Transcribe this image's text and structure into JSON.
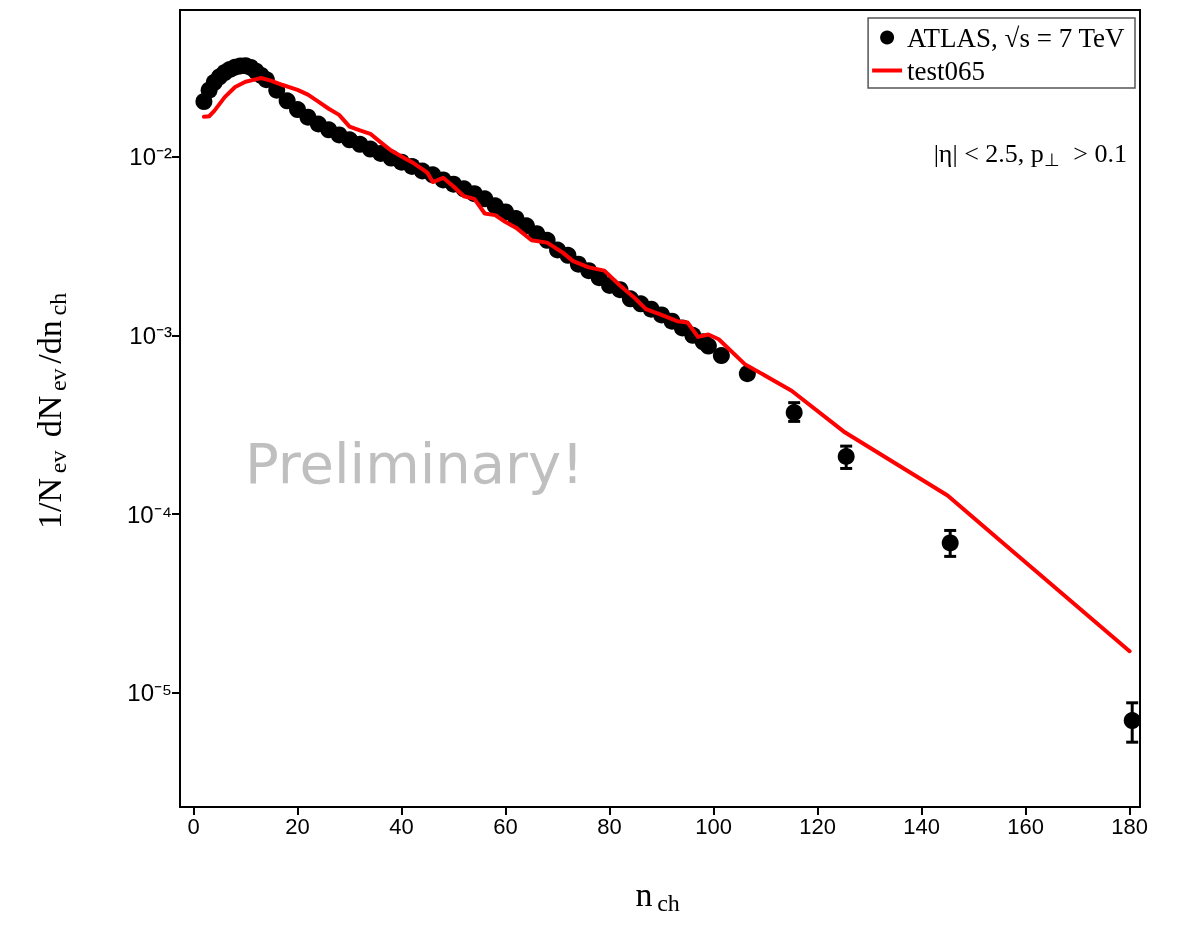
{
  "chart_data": {
    "type": "scatter",
    "xlabel": "n$_{ch}$",
    "ylabel": "1/N$_{ev}$ dN$_{ev}$/dn$_{ch}$",
    "annotations": [
      "|η| < 2.5, p$_{⊥}$ > 0.1",
      "Preliminary!"
    ],
    "log": "y",
    "grid": false,
    "legend": "top right",
    "xlim": [
      -2.6,
      182
    ],
    "xticks": [
      0,
      20,
      40,
      60,
      80,
      100,
      120,
      140,
      160,
      180
    ],
    "ylim": [
      2.3e-06,
      0.066
    ],
    "yticks": [
      {
        "value": 1e-05,
        "label": "10⁻⁵"
      },
      {
        "value": 0.0001,
        "label": "10⁻⁴"
      },
      {
        "value": 0.001,
        "label": "10⁻³"
      },
      {
        "value": 0.01,
        "label": "10⁻²"
      }
    ],
    "series": [
      {
        "name": "ATLAS, √s = 7 TeV",
        "marker": "circle",
        "color": "#000000",
        "x": [
          2,
          3,
          4,
          5,
          6,
          7,
          8,
          9,
          10,
          11,
          12,
          13,
          14,
          16,
          18,
          20,
          22,
          24,
          26,
          28,
          30,
          32,
          34,
          36,
          38,
          40,
          42,
          44,
          46,
          48,
          50,
          52,
          54,
          56,
          58,
          60,
          62,
          64,
          66,
          68,
          70,
          72,
          74,
          76,
          78,
          80,
          82,
          84,
          86,
          88,
          90,
          92,
          94,
          96,
          98,
          99,
          101.5,
          106.5,
          115.5,
          125.5,
          145.5,
          180.5
        ],
        "values": [
          0.0203,
          0.0235,
          0.026,
          0.0279,
          0.0295,
          0.0307,
          0.0316,
          0.0321,
          0.0322,
          0.0315,
          0.03,
          0.0284,
          0.0269,
          0.0235,
          0.0205,
          0.0183,
          0.0166,
          0.0152,
          0.0141,
          0.0132,
          0.0124,
          0.0117,
          0.011,
          0.0104,
          0.0098,
          0.0093,
          0.0088,
          0.0083,
          0.0079,
          0.0074,
          0.007,
          0.0066,
          0.0062,
          0.0058,
          0.0053,
          0.0049,
          0.0045,
          0.0041,
          0.0037,
          0.0034,
          0.003,
          0.0028,
          0.0025,
          0.0023,
          0.0021,
          0.0019,
          0.0018,
          0.0016,
          0.0015,
          0.0014,
          0.0013,
          0.0012,
          0.0011,
          0.001,
          0.00092,
          0.00087,
          0.00077,
          0.00061,
          0.00037,
          0.00021,
          6.9e-05,
          7e-06
        ],
        "errors": [
          null,
          null,
          null,
          null,
          null,
          null,
          null,
          null,
          null,
          null,
          null,
          null,
          null,
          null,
          null,
          null,
          null,
          null,
          null,
          null,
          null,
          null,
          null,
          null,
          null,
          null,
          null,
          null,
          null,
          null,
          null,
          null,
          null,
          null,
          null,
          null,
          null,
          null,
          null,
          null,
          null,
          null,
          null,
          null,
          null,
          null,
          null,
          null,
          null,
          null,
          null,
          null,
          null,
          null,
          null,
          null,
          null,
          null,
          [
            0.00033,
            0.00042
          ],
          [
            0.00018,
            0.00024
          ],
          [
            5.8e-05,
            8.1e-05
          ],
          [
            5.3e-06,
            8.8e-06
          ]
        ]
      },
      {
        "name": "test065",
        "type": "line",
        "line_style": "solid",
        "color": "#ff0000",
        "x": [
          2,
          3,
          4,
          6,
          8,
          10,
          13,
          15,
          17,
          20,
          22,
          24,
          26,
          28,
          30,
          32,
          34,
          36,
          38,
          40,
          42,
          44,
          45,
          46,
          48,
          50,
          52,
          54,
          56,
          58,
          60,
          62,
          65,
          68,
          71,
          73,
          76,
          79,
          82,
          85,
          87,
          90,
          93,
          95,
          97,
          99,
          101,
          106,
          115,
          125,
          145,
          180
        ],
        "values": [
          0.0167,
          0.0168,
          0.018,
          0.0215,
          0.0245,
          0.0262,
          0.0275,
          0.0265,
          0.0252,
          0.0236,
          0.0222,
          0.0203,
          0.0185,
          0.0171,
          0.0147,
          0.014,
          0.0134,
          0.012,
          0.0108,
          0.01,
          0.0093,
          0.0085,
          0.0081,
          0.0072,
          0.0076,
          0.0068,
          0.006,
          0.0058,
          0.0048,
          0.0047,
          0.0043,
          0.004,
          0.0034,
          0.0033,
          0.0029,
          0.0026,
          0.0024,
          0.0023,
          0.0019,
          0.0016,
          0.0014,
          0.0013,
          0.0012,
          0.00118,
          0.00098,
          0.00101,
          0.00095,
          0.00069,
          0.00049,
          0.00029,
          0.000127,
          1.71e-05
        ]
      }
    ]
  }
}
